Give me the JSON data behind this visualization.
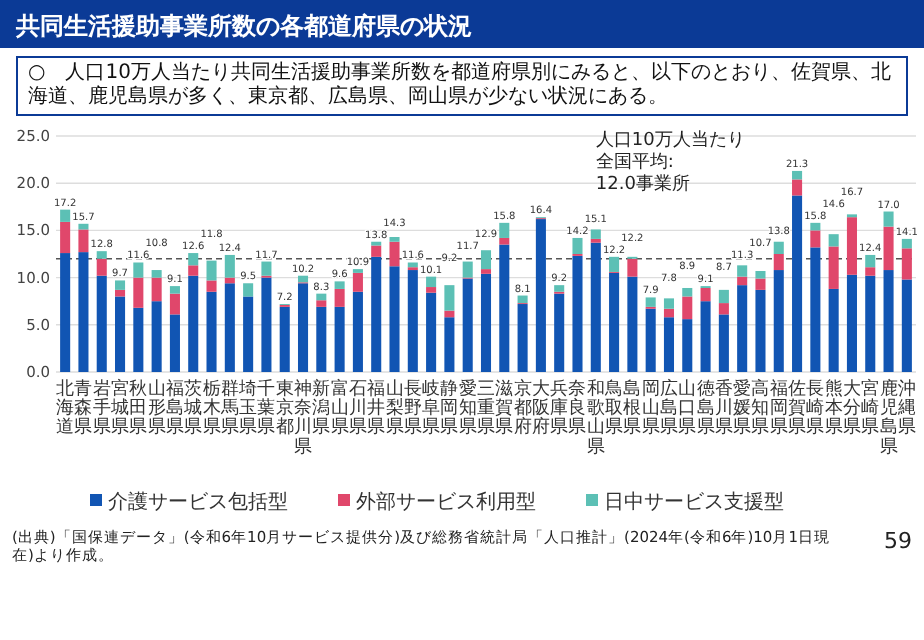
{
  "chart_data": {
    "type": "bar",
    "stacked": true,
    "title": "共同生活援助事業所数の各都道府県の状況",
    "subtitle": "○　人口10万人当たり共同生活援助事業所数を都道府県別にみると、以下のとおり、佐賀県、北海道、鹿児島県が多く、東京都、広島県、岡山県が少ない状況にある。",
    "categories": [
      "北海道",
      "青森県",
      "岩手県",
      "宮城県",
      "秋田県",
      "山形県",
      "福島県",
      "茨城県",
      "栃木県",
      "群馬県",
      "埼玉県",
      "千葉県",
      "東京都",
      "神奈川県",
      "新潟県",
      "富山県",
      "石川県",
      "福井県",
      "山梨県",
      "長野県",
      "岐阜県",
      "静岡県",
      "愛知県",
      "三重県",
      "滋賀県",
      "京都府",
      "大阪府",
      "兵庫県",
      "奈良県",
      "和歌山県",
      "鳥取県",
      "島根県",
      "岡山県",
      "広島県",
      "山口県",
      "徳島県",
      "香川県",
      "愛媛県",
      "高知県",
      "福岡県",
      "佐賀県",
      "長崎県",
      "熊本県",
      "大分県",
      "宮崎県",
      "鹿児島県",
      "沖縄県"
    ],
    "series": [
      {
        "name": "介護サービス包括型",
        "color": "#1155b3",
        "values": [
          12.6,
          12.7,
          10.2,
          8.0,
          6.8,
          7.5,
          6.1,
          10.2,
          8.5,
          9.4,
          8.0,
          10.0,
          6.9,
          9.4,
          6.9,
          6.9,
          8.5,
          12.2,
          11.2,
          10.8,
          8.4,
          5.8,
          9.9,
          10.4,
          13.5,
          7.2,
          16.2,
          8.3,
          12.3,
          13.7,
          10.5,
          10.1,
          6.7,
          5.8,
          5.6,
          7.5,
          6.1,
          9.2,
          8.7,
          10.8,
          18.7,
          13.2,
          8.8,
          10.3,
          10.2,
          10.8,
          9.8
        ]
      },
      {
        "name": "外部サービス利用型",
        "color": "#e0476b",
        "values": [
          3.3,
          2.4,
          1.8,
          0.7,
          3.2,
          2.5,
          2.2,
          1.1,
          1.2,
          0.6,
          null,
          0.2,
          0.2,
          0.1,
          0.7,
          1.9,
          2.0,
          1.2,
          2.6,
          0.3,
          0.6,
          0.7,
          0.1,
          0.5,
          0.7,
          0.1,
          0.1,
          0.2,
          0.2,
          0.4,
          0.1,
          1.9,
          0.2,
          0.9,
          2.4,
          1.4,
          1.2,
          0.9,
          1.2,
          1.7,
          1.7,
          1.8,
          4.5,
          6.1,
          0.9,
          4.6,
          3.3
        ]
      },
      {
        "name": "日中サービス支援型",
        "color": "#5cc0b5",
        "values": [
          1.3,
          0.6,
          0.8,
          1.0,
          1.6,
          0.8,
          0.8,
          1.3,
          2.1,
          2.4,
          1.4,
          1.5,
          0.1,
          0.7,
          0.7,
          0.8,
          0.4,
          0.4,
          0.5,
          0.5,
          1.1,
          2.7,
          1.7,
          2.0,
          1.6,
          0.8,
          0.1,
          0.7,
          1.7,
          1.0,
          1.6,
          0.2,
          1.0,
          1.1,
          0.9,
          0.2,
          1.4,
          1.2,
          0.8,
          1.3,
          0.9,
          0.8,
          1.3,
          0.3,
          1.3,
          1.6,
          1.0
        ]
      }
    ],
    "totals": [
      "17.2",
      "15.7",
      "12.8",
      "9.7",
      "11.6",
      "10.8",
      "9.1",
      "12.6",
      "11.8",
      "12.4",
      "9.5",
      "11.7",
      "7.2",
      "10.2",
      "8.3",
      "9.6",
      "10.9",
      "13.8",
      "14.3",
      "11.6",
      "10.1",
      "9.2",
      "11.7",
      "12.9",
      "15.8",
      "8.1",
      "16.4",
      "9.2",
      "14.2",
      "15.1",
      "12.2",
      "12.2",
      "7.9",
      "7.8",
      "8.9",
      "9.1",
      "8.7",
      "11.3",
      "10.7",
      "13.8",
      "21.3",
      "15.8",
      "14.6",
      "16.7",
      "12.4",
      "17.0",
      "14.1"
    ],
    "ylim": [
      0,
      25
    ],
    "yticks": [
      {
        "value": 0,
        "label": "0.0"
      },
      {
        "value": 5,
        "label": "5.0"
      },
      {
        "value": 10,
        "label": "10.0"
      },
      {
        "value": 15,
        "label": "15.0"
      },
      {
        "value": 20,
        "label": "20.0"
      },
      {
        "value": 25,
        "label": "25.0"
      }
    ],
    "grid": "y",
    "legend": "bottom",
    "ref_lines": [
      {
        "axis": "y",
        "value": 12.0,
        "line_style": "dashed",
        "color": "#555555"
      }
    ],
    "annotations": [
      "人口10万人当たり",
      "全国平均:",
      "12.0事業所",
      "(出典)「国保連データ」(令和6年10月サービス提供分)及び総務省統計局「人口推計」(2024年(令和6年)10月1日現在)より作成。",
      "59"
    ]
  }
}
